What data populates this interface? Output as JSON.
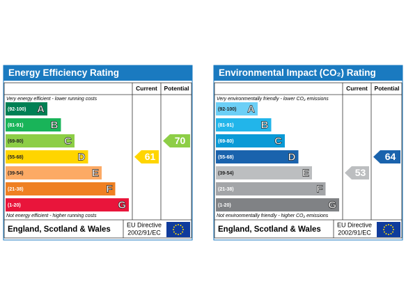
{
  "panels": [
    {
      "title": "Energy Efficiency Rating",
      "columns": [
        "Current",
        "Potential"
      ],
      "top_note": "Very energy efficient - lower running costs",
      "bottom_note": "Not energy efficient - higher running costs",
      "bands": [
        {
          "range": "(92-100)",
          "letter": "A",
          "color": "#008054"
        },
        {
          "range": "(81-91)",
          "letter": "B",
          "color": "#19b459"
        },
        {
          "range": "(69-80)",
          "letter": "C",
          "color": "#8dce46"
        },
        {
          "range": "(55-68)",
          "letter": "D",
          "color": "#ffd500"
        },
        {
          "range": "(39-54)",
          "letter": "E",
          "color": "#fcaa65"
        },
        {
          "range": "(21-38)",
          "letter": "F",
          "color": "#ef8023"
        },
        {
          "range": "(1-20)",
          "letter": "G",
          "color": "#e9153b"
        }
      ],
      "current": 61,
      "potential": 70,
      "footer": {
        "region": "England, Scotland & Wales",
        "directive": [
          "EU Directive",
          "2002/91/EC"
        ]
      }
    },
    {
      "title": "Environmental Impact (CO₂) Rating",
      "columns": [
        "Current",
        "Potential"
      ],
      "top_note": "Very environmentally friendly - lower CO₂ emissions",
      "bottom_note": "Not environmentally friendly - higher CO₂ emissions",
      "bands": [
        {
          "range": "(92-100)",
          "letter": "A",
          "color": "#6ccff6"
        },
        {
          "range": "(81-91)",
          "letter": "B",
          "color": "#22b5ea"
        },
        {
          "range": "(69-80)",
          "letter": "C",
          "color": "#0a9ad6"
        },
        {
          "range": "(55-68)",
          "letter": "D",
          "color": "#1a63ad"
        },
        {
          "range": "(39-54)",
          "letter": "E",
          "color": "#bcbec0"
        },
        {
          "range": "(21-38)",
          "letter": "F",
          "color": "#a3a5a8"
        },
        {
          "range": "(1-20)",
          "letter": "G",
          "color": "#808285"
        }
      ],
      "current": 53,
      "potential": 64,
      "footer": {
        "region": "England, Scotland & Wales",
        "directive": [
          "EU Directive",
          "2002/91/EC"
        ]
      }
    }
  ]
}
